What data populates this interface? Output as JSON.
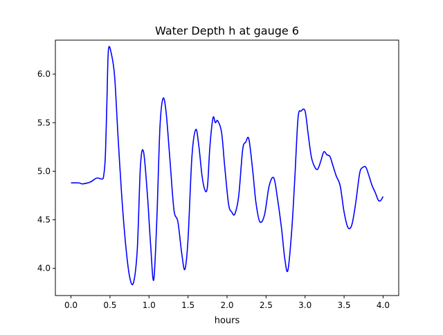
{
  "chart_data": {
    "type": "line",
    "title": "Water Depth h at gauge 6",
    "xlabel": "hours",
    "ylabel": "",
    "xlim": [
      -0.2,
      4.2
    ],
    "ylim": [
      3.72,
      6.35
    ],
    "xticks": [
      0.0,
      0.5,
      1.0,
      1.5,
      2.0,
      2.5,
      3.0,
      3.5,
      4.0
    ],
    "xtick_labels": [
      "0.0",
      "0.5",
      "1.0",
      "1.5",
      "2.0",
      "2.5",
      "3.0",
      "3.5",
      "4.0"
    ],
    "yticks": [
      4.0,
      4.5,
      5.0,
      5.5,
      6.0
    ],
    "ytick_labels": [
      "4.0",
      "4.5",
      "5.0",
      "5.5",
      "6.0"
    ],
    "grid": false,
    "series": [
      {
        "color": "#0000ff",
        "x": [
          0.0,
          0.1,
          0.15,
          0.25,
          0.33,
          0.4,
          0.42,
          0.44,
          0.46,
          0.48,
          0.52,
          0.56,
          0.6,
          0.65,
          0.7,
          0.75,
          0.8,
          0.85,
          0.89,
          0.93,
          0.98,
          1.02,
          1.06,
          1.1,
          1.14,
          1.18,
          1.22,
          1.27,
          1.32,
          1.37,
          1.42,
          1.46,
          1.5,
          1.55,
          1.6,
          1.64,
          1.68,
          1.72,
          1.75,
          1.78,
          1.82,
          1.85,
          1.88,
          1.93,
          1.97,
          2.02,
          2.06,
          2.1,
          2.15,
          2.2,
          2.24,
          2.28,
          2.33,
          2.37,
          2.42,
          2.48,
          2.54,
          2.6,
          2.65,
          2.7,
          2.74,
          2.78,
          2.83,
          2.87,
          2.91,
          2.95,
          3.0,
          3.04,
          3.08,
          3.12,
          3.16,
          3.2,
          3.24,
          3.28,
          3.32,
          3.36,
          3.4,
          3.45,
          3.5,
          3.55,
          3.6,
          3.65,
          3.7,
          3.74,
          3.78,
          3.82,
          3.86,
          3.9,
          3.94,
          3.97,
          4.0
        ],
        "y": [
          4.88,
          4.88,
          4.87,
          4.89,
          4.93,
          4.92,
          4.96,
          5.15,
          5.7,
          6.25,
          6.2,
          5.97,
          5.4,
          4.75,
          4.25,
          3.92,
          3.85,
          4.2,
          5.05,
          5.2,
          4.75,
          4.25,
          3.88,
          4.5,
          5.45,
          5.75,
          5.6,
          5.1,
          4.6,
          4.48,
          4.15,
          3.99,
          4.3,
          5.15,
          5.43,
          5.25,
          4.95,
          4.8,
          4.85,
          5.25,
          5.55,
          5.5,
          5.52,
          5.4,
          5.05,
          4.66,
          4.58,
          4.56,
          4.75,
          5.22,
          5.3,
          5.33,
          5.0,
          4.68,
          4.48,
          4.55,
          4.85,
          4.93,
          4.7,
          4.4,
          4.1,
          3.98,
          4.4,
          4.95,
          5.55,
          5.62,
          5.62,
          5.38,
          5.15,
          5.05,
          5.02,
          5.1,
          5.2,
          5.17,
          5.15,
          5.05,
          4.95,
          4.85,
          4.58,
          4.42,
          4.45,
          4.68,
          4.98,
          5.04,
          5.04,
          4.95,
          4.85,
          4.78,
          4.7,
          4.7,
          4.74
        ]
      }
    ]
  }
}
